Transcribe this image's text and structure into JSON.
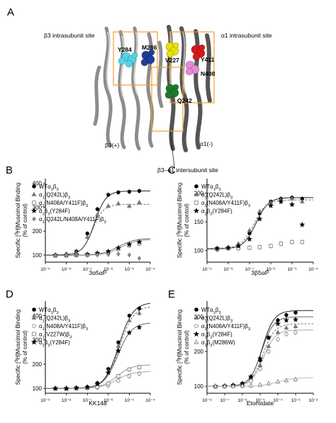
{
  "panel_a": {
    "letter": "A",
    "labels": {
      "b3_intrasubunit": "β3 intrasubunit site",
      "a1_intrasubunit": "α1 intrasubunit site",
      "y284": "Y284",
      "m286": "M286",
      "v227": "V227",
      "y411": "Y411",
      "n408": "N408",
      "q242": "Q242",
      "b3_plus": "β3(+)",
      "a1_minus": "α1(-)",
      "intersubunit": "β3–α1 intersubunit site"
    },
    "colors": {
      "cyan": "#4fd6e8",
      "blue": "#1c3f9a",
      "yellow": "#e8e000",
      "red": "#d81818",
      "pink": "#e38ad8",
      "green": "#1d7a2c",
      "box": "#f0a030"
    }
  },
  "chart_data": [
    {
      "panel": "B",
      "type": "scatter",
      "xlabel": "3α5αP",
      "ylabel": "Specific [3H]Muscimol Binding (% of control)",
      "xlim": [
        1e-09,
        0.0001
      ],
      "ylim": [
        70,
        420
      ],
      "xtick_labels": [
        "10⁻⁹",
        "10⁻⁸",
        "10⁻⁷",
        "10⁻⁶",
        "10⁻⁵",
        "10⁻⁴"
      ],
      "ytick_values": [
        100,
        200,
        300,
        400
      ],
      "legend_position": "top-left",
      "series": [
        {
          "name": "WTα1β3",
          "marker": "circle-filled",
          "x": [
            3e-09,
            1e-08,
            3e-08,
            1e-07,
            3e-07,
            1e-06,
            3e-06,
            1e-05,
            3e-05
          ],
          "y": [
            100,
            103,
            115,
            190,
            292,
            352,
            362,
            365,
            368
          ],
          "fit": {
            "bottom": 100,
            "top": 368,
            "ec50": 2.2e-07,
            "hill": 1.6
          }
        },
        {
          "name": "α1(Q242L)β3",
          "marker": "triangle-filled",
          "x": [
            3e-09,
            1e-08,
            3e-08,
            1e-07,
            3e-07,
            1e-06,
            3e-06,
            1e-05,
            3e-05
          ],
          "y": [
            98,
            103,
            110,
            175,
            268,
            305,
            315,
            305,
            320
          ],
          "fit": {
            "bottom": 100,
            "top": 312,
            "ec50": 1.8e-07,
            "hill": 1.7
          }
        },
        {
          "name": "α1(N408A/Y411F)β3",
          "marker": "square-open",
          "x": [
            3e-09,
            1e-08,
            3e-08,
            1e-07,
            3e-07,
            1e-06,
            3e-06,
            1e-05,
            3e-05
          ],
          "y": [
            98,
            99,
            100,
            101,
            105,
            112,
            125,
            140,
            148
          ],
          "fit": {
            "bottom": 99,
            "top": 165,
            "ec50": 4e-06,
            "hill": 1.2
          }
        },
        {
          "name": "α1β3(Y284F)",
          "marker": "star-filled",
          "x": [
            3e-09,
            1e-08,
            3e-08,
            1e-07,
            3e-07,
            1e-06,
            3e-06,
            1e-05,
            3e-05
          ],
          "y": [
            99,
            99,
            101,
            103,
            108,
            115,
            130,
            145,
            155
          ],
          "fit": {
            "bottom": 99,
            "top": 170,
            "ec50": 3e-06,
            "hill": 1.1
          }
        },
        {
          "name": "α1(Q242L/N408A/Y411F)β3",
          "marker": "diamond-filled",
          "x": [
            3e-09,
            1e-08,
            3e-08,
            1e-07,
            3e-07,
            1e-06,
            3e-06,
            1e-05,
            3e-05
          ],
          "y": [
            97,
            98,
            99,
            98,
            100,
            102,
            104,
            100,
            86
          ],
          "fit": null
        }
      ]
    },
    {
      "panel": "C",
      "type": "scatter",
      "xlabel": "3β5αP",
      "ylabel": "Specific [3H]Muscimol Binding (% of control)",
      "xlim": [
        1e-09,
        0.0001
      ],
      "ylim": [
        80,
        225
      ],
      "xtick_labels": [
        "10⁻⁹",
        "10⁻⁸",
        "10⁻⁷",
        "10⁻⁶",
        "10⁻⁵",
        "10⁻⁴"
      ],
      "ytick_values": [
        100,
        150,
        200
      ],
      "legend_position": "top-left",
      "series": [
        {
          "name": "WTα1β3",
          "marker": "circle-filled",
          "x": [
            3e-09,
            1e-08,
            3e-08,
            1e-07,
            3e-07,
            1e-06,
            3e-06,
            1e-05,
            3e-05
          ],
          "y": [
            102,
            104,
            110,
            130,
            165,
            185,
            190,
            192,
            190
          ],
          "fit": {
            "bottom": 103,
            "top": 192,
            "ec50": 2e-07,
            "hill": 1.5
          }
        },
        {
          "name": "α1(Q242L)β3",
          "marker": "triangle-filled",
          "x": [
            3e-09,
            1e-08,
            3e-08,
            1e-07,
            3e-07,
            1e-06,
            3e-06,
            1e-05,
            3e-05
          ],
          "y": [
            104,
            106,
            112,
            135,
            168,
            183,
            188,
            190,
            185
          ],
          "fit": {
            "bottom": 104,
            "top": 188,
            "ec50": 1.6e-07,
            "hill": 1.5
          }
        },
        {
          "name": "α1(N408A/Y411F)β3",
          "marker": "square-open",
          "x": [
            3e-09,
            1e-08,
            3e-08,
            1e-07,
            3e-07,
            1e-06,
            3e-06,
            1e-05,
            3e-05
          ],
          "y": [
            103,
            104,
            104,
            105,
            106,
            108,
            112,
            115,
            115
          ],
          "fit": null
        },
        {
          "name": "α1β3(Y284F)",
          "marker": "star-filled",
          "x": [
            3e-09,
            1e-08,
            3e-08,
            1e-07,
            3e-07,
            1e-06,
            3e-06,
            1e-05,
            3e-05
          ],
          "y": [
            104,
            105,
            108,
            120,
            155,
            178,
            185,
            180,
            145
          ],
          "fit": null
        }
      ]
    },
    {
      "panel": "D",
      "type": "scatter",
      "xlabel": "KK148",
      "ylabel": "Specific [3H]Muscimol Binding (% of control)",
      "xlim": [
        1e-09,
        0.0001
      ],
      "ylim": [
        80,
        460
      ],
      "xtick_labels": [
        "10⁻⁹",
        "10⁻⁸",
        "10⁻⁷",
        "10⁻⁶",
        "10⁻⁵",
        "10⁻⁴"
      ],
      "ytick_values": [
        100,
        200,
        300,
        400
      ],
      "legend_position": "top-left",
      "series": [
        {
          "name": "WTα1β3",
          "marker": "circle-filled",
          "x": [
            3e-09,
            1e-08,
            3e-08,
            1e-07,
            3e-07,
            1e-06,
            3e-06,
            1e-05,
            3e-05
          ],
          "y": [
            100,
            100,
            102,
            106,
            122,
            180,
            290,
            400,
            430
          ],
          "fit": {
            "bottom": 100,
            "top": 455,
            "ec50": 3.2e-06,
            "hill": 1.3
          }
        },
        {
          "name": "α1(Q242L)β3",
          "marker": "triangle-filled",
          "x": [
            3e-09,
            1e-08,
            3e-08,
            1e-07,
            3e-07,
            1e-06,
            3e-06,
            1e-05,
            3e-05
          ],
          "y": [
            100,
            100,
            101,
            104,
            118,
            170,
            275,
            380,
            410
          ],
          "fit": {
            "bottom": 100,
            "top": 440,
            "ec50": 3.4e-06,
            "hill": 1.3
          }
        },
        {
          "name": "α1(N408A/Y411F)β3",
          "marker": "circle-open",
          "x": [
            3e-09,
            1e-08,
            3e-08,
            1e-07,
            3e-07,
            1e-06,
            3e-06,
            1e-05,
            3e-05
          ],
          "y": [
            100,
            100,
            100,
            101,
            104,
            112,
            132,
            150,
            160
          ],
          "fit": {
            "bottom": 100,
            "top": 170,
            "ec50": 2.5e-06,
            "hill": 1.2
          }
        },
        {
          "name": "α1(V227W)β3",
          "marker": "square-open",
          "x": [
            3e-09,
            1e-08,
            3e-08,
            1e-07,
            3e-07,
            1e-06,
            3e-06,
            1e-05,
            3e-05
          ],
          "y": [
            100,
            100,
            101,
            102,
            106,
            120,
            150,
            178,
            188
          ],
          "fit": {
            "bottom": 100,
            "top": 198,
            "ec50": 2.5e-06,
            "hill": 1.2
          }
        },
        {
          "name": "α1β3(Y284F)",
          "marker": "star-filled",
          "x": [
            3e-09,
            1e-08,
            3e-08,
            1e-07,
            3e-07,
            1e-06,
            3e-06,
            1e-05,
            3e-05
          ],
          "y": [
            100,
            100,
            102,
            105,
            118,
            165,
            255,
            330,
            352
          ],
          "fit": {
            "bottom": 100,
            "top": 372,
            "ec50": 2.8e-06,
            "hill": 1.3
          }
        }
      ]
    },
    {
      "panel": "E",
      "type": "scatter",
      "xlabel": "Etomidate",
      "ylabel": "Specific [3H]Muscimol Binding (% of control)",
      "xlim": [
        1e-08,
        0.01
      ],
      "ylim": [
        80,
        345
      ],
      "xtick_labels": [
        "10⁻⁸",
        "10⁻⁷",
        "10⁻⁶",
        "10⁻⁵",
        "10⁻⁴",
        "10⁻³",
        "10⁻²"
      ],
      "ytick_values": [
        100,
        200,
        300
      ],
      "legend_position": "top-left",
      "series": [
        {
          "name": "WTα1β3",
          "marker": "circle-filled",
          "x": [
            3e-08,
            1e-07,
            3e-07,
            1e-06,
            3e-06,
            1e-05,
            3e-05,
            0.0001,
            0.0003,
            0.001
          ],
          "y": [
            100,
            101,
            103,
            108,
            125,
            175,
            240,
            290,
            305,
            312
          ],
          "fit": {
            "bottom": 100,
            "top": 318,
            "ec50": 1.3e-05,
            "hill": 1.3
          }
        },
        {
          "name": "α1(Q242L)β3",
          "marker": "triangle-filled",
          "x": [
            3e-08,
            1e-07,
            3e-07,
            1e-06,
            3e-06,
            1e-05,
            3e-05,
            0.0001,
            0.0003,
            0.001
          ],
          "y": [
            100,
            101,
            102,
            106,
            120,
            160,
            215,
            255,
            268,
            272
          ],
          "fit": {
            "bottom": 100,
            "top": 280,
            "ec50": 1.4e-05,
            "hill": 1.3
          }
        },
        {
          "name": "α1(N408A/Y411F)β3",
          "marker": "circle-open",
          "x": [
            3e-08,
            1e-07,
            3e-07,
            1e-06,
            3e-06,
            1e-05,
            3e-05,
            0.0001,
            0.0003,
            0.001
          ],
          "y": [
            100,
            100,
            102,
            104,
            115,
            150,
            200,
            235,
            250,
            255
          ],
          "fit": {
            "bottom": 100,
            "top": 262,
            "ec50": 1.5e-05,
            "hill": 1.3
          }
        },
        {
          "name": "α1β3(Y284F)",
          "marker": "star-filled",
          "x": [
            3e-08,
            1e-07,
            3e-07,
            1e-06,
            3e-06,
            1e-05,
            3e-05,
            0.0001,
            0.0003,
            0.001
          ],
          "y": [
            100,
            101,
            103,
            108,
            128,
            180,
            240,
            280,
            290,
            292
          ],
          "fit": {
            "bottom": 100,
            "top": 300,
            "ec50": 1.2e-05,
            "hill": 1.3
          }
        },
        {
          "name": "α1β3(M286W)",
          "marker": "triangle-open",
          "x": [
            3e-08,
            1e-07,
            3e-07,
            1e-06,
            3e-06,
            1e-05,
            3e-05,
            0.0001,
            0.0003,
            0.001
          ],
          "y": [
            100,
            100,
            100,
            101,
            102,
            104,
            108,
            113,
            117,
            120
          ],
          "fit": {
            "bottom": 100,
            "top": 125,
            "ec50": 0.0001,
            "hill": 1.0
          }
        }
      ]
    }
  ]
}
